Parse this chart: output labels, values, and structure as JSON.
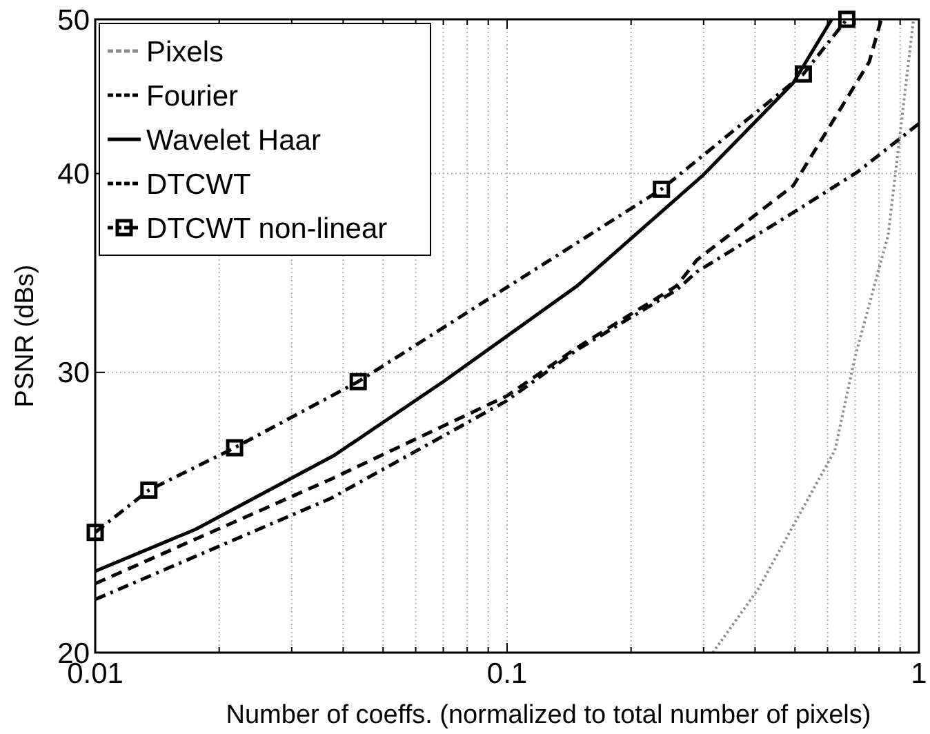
{
  "chart_data": {
    "type": "line",
    "xlabel": "Number of coeffs. (normalized to total number of pixels)",
    "ylabel": "PSNR (dBs)",
    "log": "xy",
    "grid": true,
    "legend": "top left",
    "xlim": [
      0.01,
      1
    ],
    "ylim": [
      20,
      50
    ],
    "xticks": [
      {
        "value": 0.01,
        "label": "0.01"
      },
      {
        "value": 0.02,
        "label": null
      },
      {
        "value": 0.03,
        "label": null
      },
      {
        "value": 0.04,
        "label": null
      },
      {
        "value": 0.05,
        "label": null
      },
      {
        "value": 0.06,
        "label": null
      },
      {
        "value": 0.07,
        "label": null
      },
      {
        "value": 0.08,
        "label": null
      },
      {
        "value": 0.09,
        "label": null
      },
      {
        "value": 0.1,
        "label": "0.1"
      },
      {
        "value": 0.2,
        "label": null
      },
      {
        "value": 0.3,
        "label": null
      },
      {
        "value": 0.4,
        "label": null
      },
      {
        "value": 0.5,
        "label": null
      },
      {
        "value": 0.6,
        "label": null
      },
      {
        "value": 0.7,
        "label": null
      },
      {
        "value": 0.8,
        "label": null
      },
      {
        "value": 0.9,
        "label": null
      },
      1
    ],
    "yticks": [
      20,
      30,
      40,
      50
    ],
    "series": [
      {
        "name": "Pixels",
        "color": "#8c8c8c",
        "line_style": "dotted",
        "marker": "none",
        "x": [
          0.316,
          0.406,
          0.625,
          0.7,
          0.842,
          0.97
        ],
        "values": [
          20,
          21.9,
          26.8,
          30.7,
          36.6,
          50
        ]
      },
      {
        "name": "Fourier",
        "color": "#000000",
        "line_style": "dashed",
        "marker": "none",
        "x": [
          0.01,
          0.0373,
          0.1,
          0.148,
          0.258,
          0.289,
          0.495,
          0.757,
          0.81
        ],
        "values": [
          22.1,
          25.7,
          29.0,
          31.1,
          34.0,
          35.3,
          39.3,
          47.0,
          50
        ]
      },
      {
        "name": "Wavelet Haar",
        "color": "#000000",
        "line_style": "solid",
        "marker": "none",
        "x": [
          0.01,
          0.0175,
          0.038,
          0.07,
          0.148,
          0.299,
          0.495,
          0.614
        ],
        "values": [
          22.5,
          23.9,
          26.6,
          29.6,
          34.0,
          39.9,
          45.6,
          50
        ]
      },
      {
        "name": "DTCWT",
        "color": "#000000",
        "line_style": "dashdot",
        "marker": "none",
        "x": [
          0.01,
          0.0373,
          0.1,
          0.148,
          0.258,
          0.289,
          0.495,
          0.71,
          1
        ],
        "values": [
          21.6,
          25.0,
          28.8,
          31.0,
          33.8,
          34.7,
          37.8,
          40.1,
          43.0
        ]
      },
      {
        "name": "DTCWT non-linear",
        "color": "#000000",
        "line_style": "dashdot",
        "marker": "square",
        "x": [
          0.01,
          0.0135,
          0.0218,
          0.0435,
          0.237,
          0.524,
          0.668
        ],
        "values": [
          23.8,
          25.3,
          26.9,
          29.6,
          39.1,
          46.2,
          50
        ]
      }
    ]
  }
}
